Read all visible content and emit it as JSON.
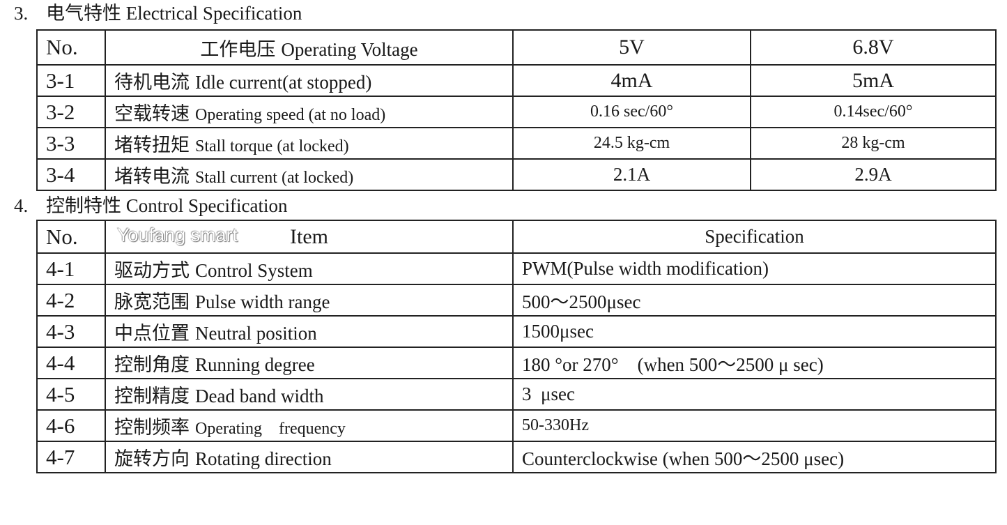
{
  "section3": {
    "number": "3.",
    "title": "电气特性 Electrical Specification",
    "header": {
      "no": "No.",
      "item_zh": "工作电压",
      "item_en": "Operating Voltage",
      "col1": "5V",
      "col2": "6.8V"
    },
    "rows": [
      {
        "no": "3-1",
        "zh": "待机电流",
        "en": "Idle current(at stopped)",
        "v1": "4mA",
        "v2": "5mA"
      },
      {
        "no": "3-2",
        "zh": "空载转速",
        "en": "Operating speed (at no load)",
        "v1": "0.16 sec/60°",
        "v2": "0.14sec/60°"
      },
      {
        "no": "3-3",
        "zh": "堵转扭矩",
        "en": "Stall torque (at locked)",
        "v1": "24.5 kg-cm",
        "v2": "28 kg-cm"
      },
      {
        "no": "3-4",
        "zh": "堵转电流",
        "en": "Stall current (at locked)",
        "v1": "2.1A",
        "v2": "2.9A"
      }
    ]
  },
  "section4": {
    "number": "4.",
    "title": "控制特性 Control Specification",
    "header": {
      "no": "No.",
      "item": "Item",
      "spec": "Specification"
    },
    "rows": [
      {
        "no": "4-1",
        "zh": "驱动方式",
        "en": "Control System",
        "spec": "PWM(Pulse width modification)"
      },
      {
        "no": "4-2",
        "zh": "脉宽范围",
        "en": "Pulse width range",
        "spec": "500～2500μsec"
      },
      {
        "no": "4-3",
        "zh": "中点位置",
        "en": "Neutral position",
        "spec": "1500μsec"
      },
      {
        "no": "4-4",
        "zh": "控制角度",
        "en": "Running degree",
        "spec": "180 °or 270°    (when 500～2500 μ sec)"
      },
      {
        "no": "4-5",
        "zh": "控制精度",
        "en": "Dead band width",
        "spec": "3  μsec"
      },
      {
        "no": "4-6",
        "zh": "控制频率",
        "en": "Operating    frequency",
        "spec": "50-330Hz"
      },
      {
        "no": "4-7",
        "zh": "旋转方向",
        "en": "Rotating direction",
        "spec": "Counterclockwise (when 500～2500 μsec)"
      }
    ]
  },
  "watermark": "Youfang smart"
}
